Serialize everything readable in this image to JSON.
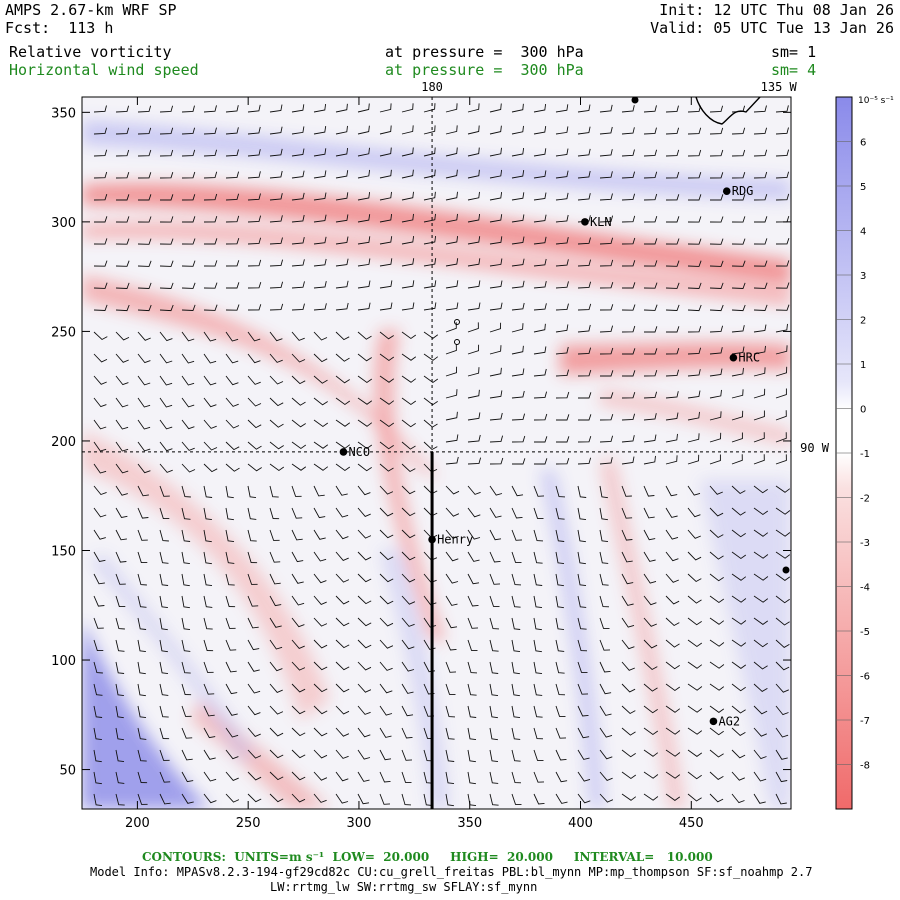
{
  "header": {
    "model": "AMPS 2.67-km WRF SP",
    "forecast": "Fcst:  113 h",
    "init": "Init: 12 UTC Thu 08 Jan 26",
    "valid": "Valid: 05 UTC Tue 13 Jan 26",
    "field1": {
      "name": "Relative vorticity",
      "pressure": "at pressure =  300 hPa",
      "smooth": "sm= 1"
    },
    "field2": {
      "name": "Horizontal wind speed",
      "pressure": "at pressure =  300 hPa",
      "smooth": "sm= 4"
    }
  },
  "colors": {
    "positive": "#7f7fe6",
    "negative": "#f06a6a",
    "header_green": "#1f8a1f"
  },
  "chart_data": {
    "type": "heatmap",
    "title": "Relative vorticity",
    "xlim": [
      175,
      495
    ],
    "ylim": [
      32,
      357
    ],
    "xticks": [
      200,
      250,
      300,
      350,
      400,
      450
    ],
    "yticks": [
      50,
      100,
      150,
      200,
      250,
      300,
      350
    ],
    "meridians": [
      {
        "label": "180",
        "x": 333
      },
      {
        "label": "135 W",
        "x": 494
      }
    ],
    "parallel": {
      "label": "90 W",
      "y": 195
    },
    "cross_section": {
      "x": 333,
      "y_from": 32,
      "y_to": 195
    },
    "stations": [
      {
        "name": "RDG",
        "x": 466,
        "y": 314
      },
      {
        "name": "KLN",
        "x": 402,
        "y": 300
      },
      {
        "name": "HRC",
        "x": 469,
        "y": 238
      },
      {
        "name": "NCO",
        "x": 293,
        "y": 195
      },
      {
        "name": "Henry",
        "x": 333,
        "y": 155
      },
      {
        "name": "AG2",
        "x": 460,
        "y": 72
      }
    ],
    "colorbar": {
      "unit_label": "10⁻⁵ s⁻¹",
      "ticks": [
        6,
        5,
        4,
        3,
        2,
        1,
        0,
        -1,
        -2,
        -3,
        -4,
        -5,
        -6,
        -7,
        -8
      ],
      "vmin": -9,
      "vmax": 7
    },
    "wind_barbs": "shown"
  },
  "footer": {
    "contours": "CONTOURS:  UNITS=m s⁻¹  LOW=  20.000     HIGH=  20.000     INTERVAL=   10.000",
    "model_info": "Model Info: MPASv8.2.3-194-gf29cd82c CU:cu_grell_freitas PBL:bl_mynn MP:mp_thompson SF:sf_noahmp 2.7",
    "model_info2": "LW:rrtmg_lw SW:rrtmg_sw SFLAY:sf_mynn"
  }
}
